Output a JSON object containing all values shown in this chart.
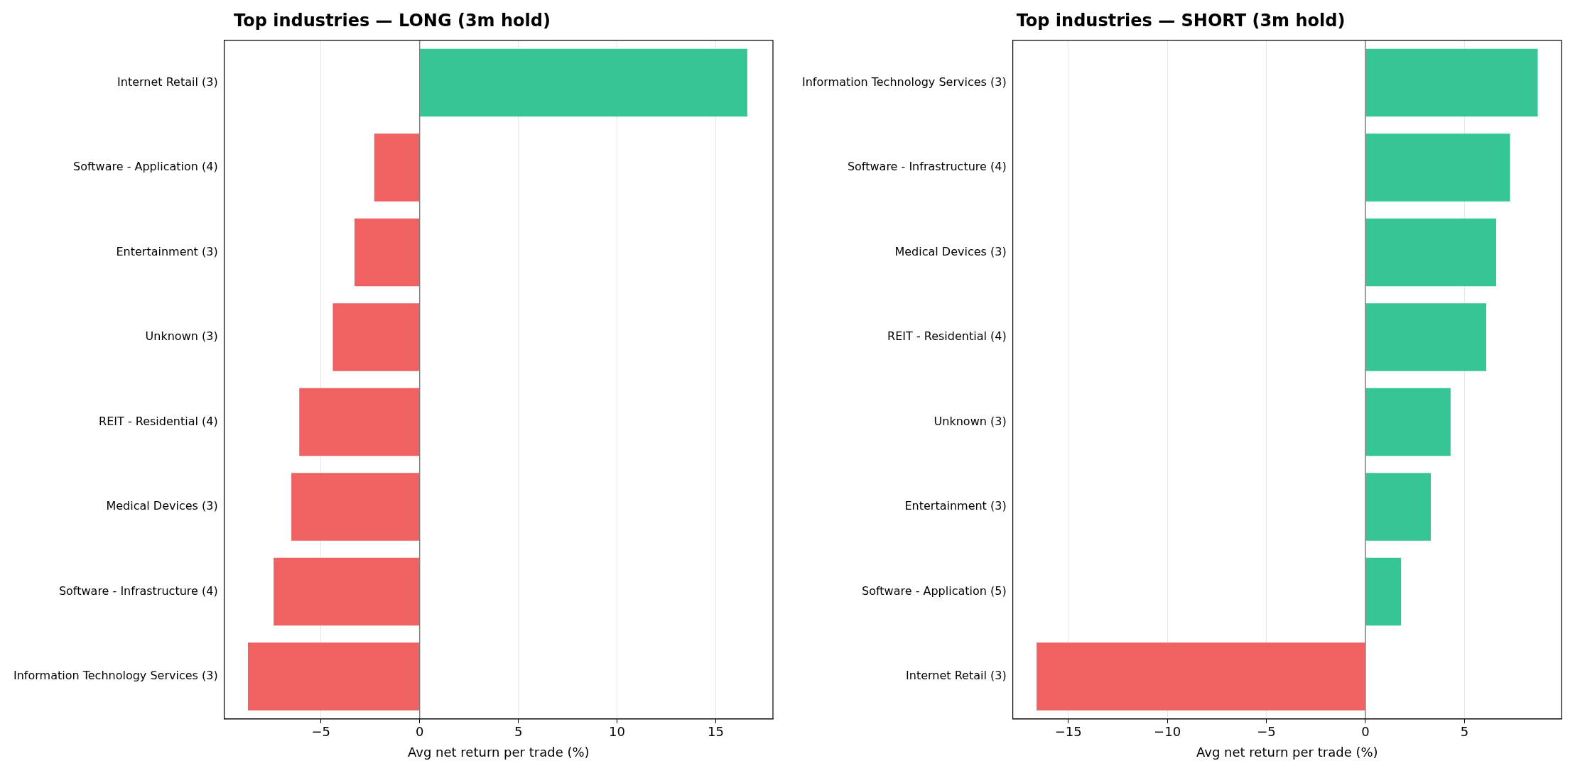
{
  "chart_data": [
    {
      "type": "bar",
      "orientation": "horizontal",
      "title": "Top industries — LONG (3m hold)",
      "xlabel": "Avg net return per trade (%)",
      "categories": [
        "Internet Retail (3)",
        "Software - Application (4)",
        "Entertainment (3)",
        "Unknown (3)",
        "REIT - Residential (4)",
        "Medical Devices (3)",
        "Software - Infrastructure (4)",
        "Information Technology Services (3)"
      ],
      "values": [
        16.6,
        -2.3,
        -3.3,
        -4.4,
        -6.1,
        -6.5,
        -7.4,
        -8.7
      ],
      "colors": [
        "#36c594",
        "#f06262",
        "#f06262",
        "#f06262",
        "#f06262",
        "#f06262",
        "#f06262",
        "#f06262"
      ],
      "xlim": [
        -9.9,
        17.9
      ],
      "xticks": [
        -5,
        0,
        5,
        10,
        15
      ],
      "grid": "x",
      "ref_lines": [
        {
          "axis": "x",
          "value": 0,
          "color": "#808080"
        }
      ]
    },
    {
      "type": "bar",
      "orientation": "horizontal",
      "title": "Top industries — SHORT (3m hold)",
      "xlabel": "Avg net return per trade (%)",
      "categories": [
        "Information Technology Services (3)",
        "Software - Infrastructure (4)",
        "Medical Devices (3)",
        "REIT - Residential (4)",
        "Unknown (3)",
        "Entertainment (3)",
        "Software - Application (5)",
        "Internet Retail (3)"
      ],
      "values": [
        8.7,
        7.3,
        6.6,
        6.1,
        4.3,
        3.3,
        1.8,
        -16.6
      ],
      "colors": [
        "#36c594",
        "#36c594",
        "#36c594",
        "#36c594",
        "#36c594",
        "#36c594",
        "#36c594",
        "#f06262"
      ],
      "xlim": [
        -17.8,
        9.9
      ],
      "xticks": [
        -15,
        -10,
        -5,
        0,
        5
      ],
      "grid": "x",
      "ref_lines": [
        {
          "axis": "x",
          "value": 0,
          "color": "#808080"
        }
      ]
    }
  ]
}
